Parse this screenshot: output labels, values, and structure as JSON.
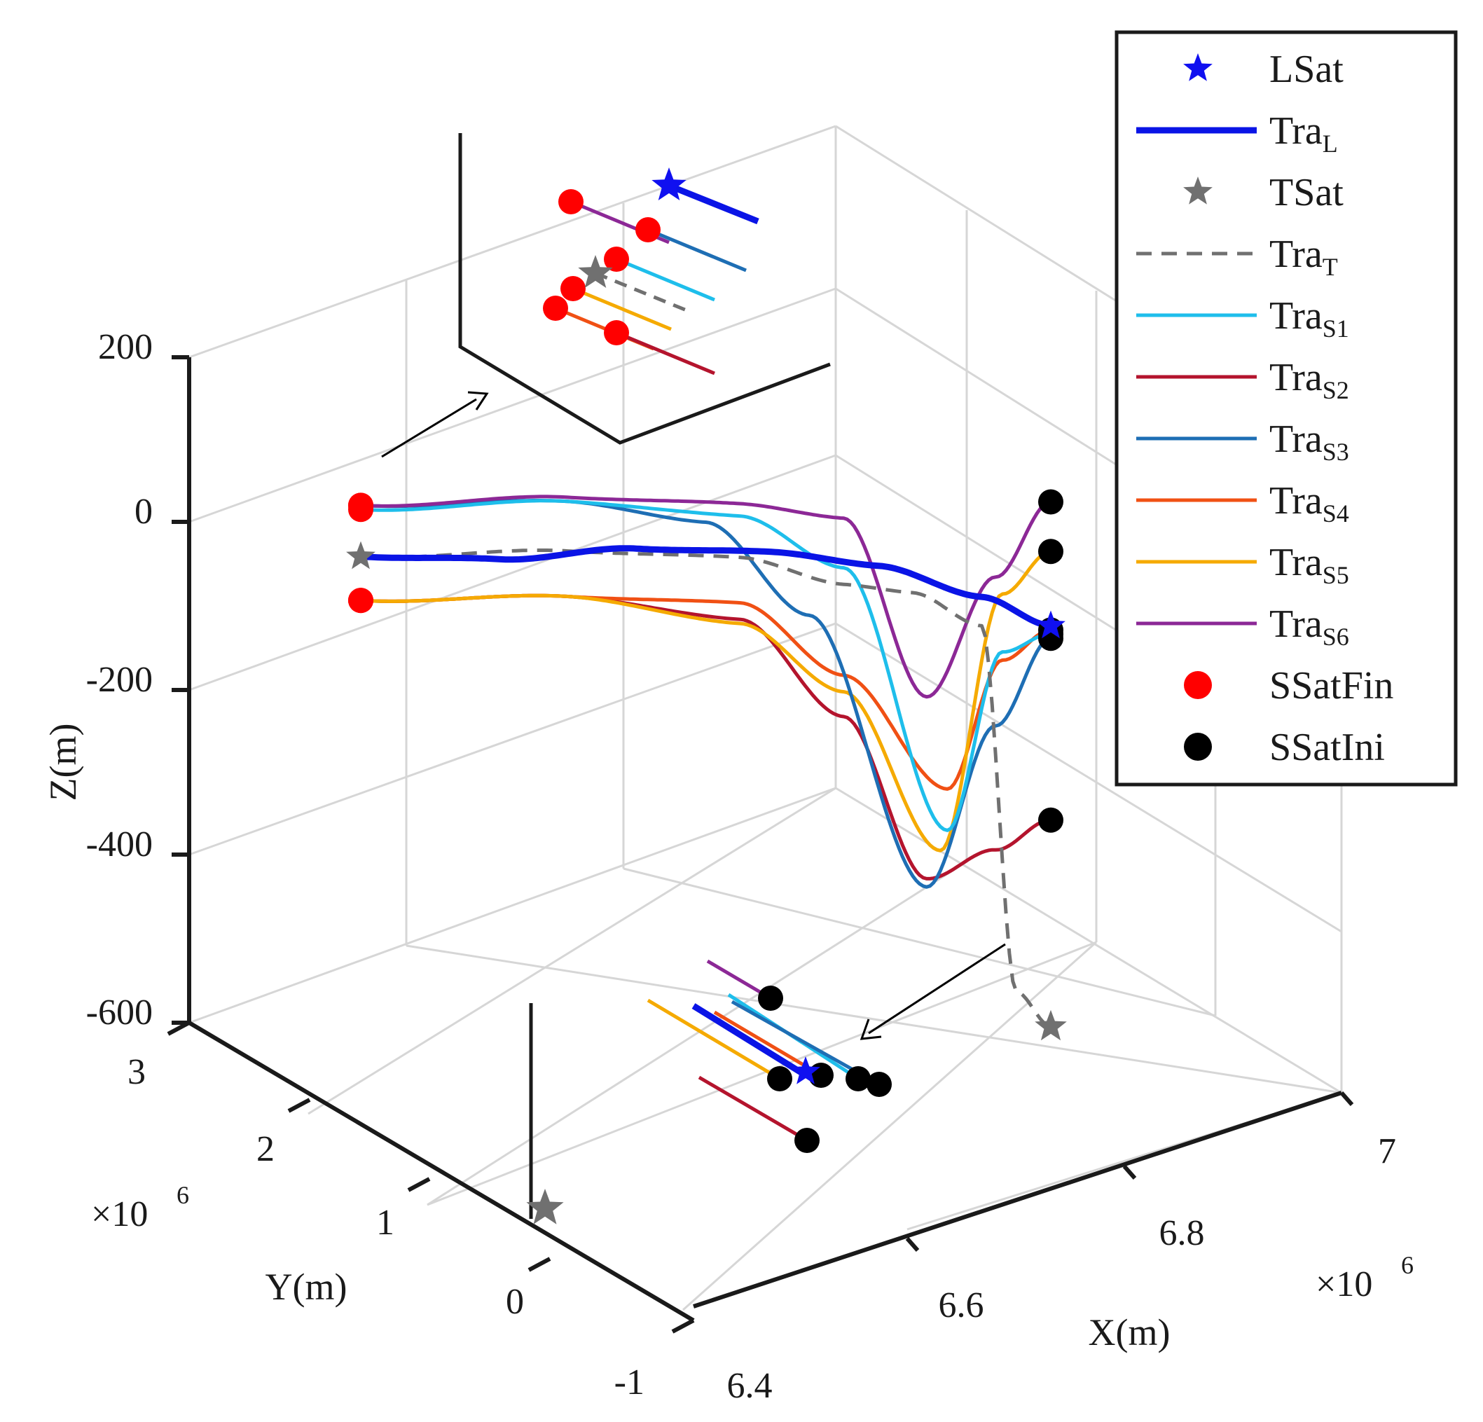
{
  "chart_data": {
    "type": "line3d",
    "title": "",
    "xlabel": "X(m)",
    "ylabel": "Y(m)",
    "zlabel": "Z(m)",
    "x_ticks": [
      "6.4",
      "6.6",
      "6.8",
      "7"
    ],
    "y_ticks": [
      "-1",
      "0",
      "1",
      "2",
      "3"
    ],
    "z_ticks": [
      "-600",
      "-400",
      "-200",
      "0",
      "200"
    ],
    "x_multiplier": "×10",
    "x_multiplier_exp": "6",
    "y_multiplier": "×10",
    "y_multiplier_exp": "6",
    "xlim": [
      6.4,
      7.0
    ],
    "ylim": [
      -1,
      3
    ],
    "zlim": [
      -600,
      200
    ],
    "grid": true,
    "legend_position": "top-right",
    "series": [
      {
        "name": "LSat",
        "base": "LSat",
        "sub": "",
        "style": "star",
        "color": "#1010f0"
      },
      {
        "name": "TraL",
        "base": "Tra",
        "sub": "L",
        "style": "line-thick",
        "color": "#0a14e6",
        "z_profile": [
          [
            0,
            -42
          ],
          [
            0.2,
            -35
          ],
          [
            0.4,
            -12
          ],
          [
            0.6,
            -6
          ],
          [
            0.75,
            -15
          ],
          [
            0.9,
            -45
          ],
          [
            1,
            -75
          ]
        ]
      },
      {
        "name": "TSat",
        "base": "TSat",
        "sub": "",
        "style": "star",
        "color": "#707070"
      },
      {
        "name": "TraT",
        "base": "Tra",
        "sub": "T",
        "style": "dashed",
        "color": "#707070",
        "z_profile": [
          [
            0,
            -42
          ],
          [
            0.3,
            -20
          ],
          [
            0.55,
            -15
          ],
          [
            0.7,
            -40
          ],
          [
            0.8,
            -45
          ],
          [
            0.9,
            -80
          ],
          [
            0.95,
            -520
          ],
          [
            1,
            -560
          ]
        ]
      },
      {
        "name": "TraS1",
        "base": "Tra",
        "sub": "S1",
        "style": "line",
        "color": "#1ebeeb",
        "z_profile": [
          [
            0,
            15
          ],
          [
            0.3,
            40
          ],
          [
            0.55,
            35
          ],
          [
            0.7,
            -20
          ],
          [
            0.85,
            -330
          ],
          [
            0.93,
            -110
          ],
          [
            1,
            -85
          ]
        ]
      },
      {
        "name": "TraS2",
        "base": "Tra",
        "sub": "S2",
        "style": "line",
        "color": "#b4142d",
        "z_profile": [
          [
            0,
            -95
          ],
          [
            0.3,
            -75
          ],
          [
            0.55,
            -90
          ],
          [
            0.7,
            -200
          ],
          [
            0.82,
            -390
          ],
          [
            0.92,
            -350
          ],
          [
            1,
            -310
          ]
        ]
      },
      {
        "name": "TraS3",
        "base": "Tra",
        "sub": "S3",
        "style": "line",
        "color": "#1e6eb4",
        "z_profile": [
          [
            0,
            20
          ],
          [
            0.3,
            40
          ],
          [
            0.5,
            25
          ],
          [
            0.65,
            -80
          ],
          [
            0.82,
            -400
          ],
          [
            0.92,
            -200
          ],
          [
            1,
            -90
          ]
        ]
      },
      {
        "name": "TraS4",
        "base": "Tra",
        "sub": "S4",
        "style": "line",
        "color": "#f05014",
        "z_profile": [
          [
            0,
            -95
          ],
          [
            0.3,
            -75
          ],
          [
            0.55,
            -70
          ],
          [
            0.7,
            -150
          ],
          [
            0.85,
            -280
          ],
          [
            0.93,
            -120
          ],
          [
            1,
            -80
          ]
        ]
      },
      {
        "name": "TraS5",
        "base": "Tra",
        "sub": "S5",
        "style": "line",
        "color": "#f5aa00",
        "z_profile": [
          [
            0,
            -95
          ],
          [
            0.3,
            -75
          ],
          [
            0.55,
            -95
          ],
          [
            0.7,
            -170
          ],
          [
            0.84,
            -355
          ],
          [
            0.93,
            -40
          ],
          [
            1,
            15
          ]
        ]
      },
      {
        "name": "TraS6",
        "base": "Tra",
        "sub": "S6",
        "style": "line",
        "color": "#8c2896",
        "z_profile": [
          [
            0,
            20
          ],
          [
            0.3,
            45
          ],
          [
            0.55,
            50
          ],
          [
            0.7,
            40
          ],
          [
            0.82,
            -170
          ],
          [
            0.92,
            -20
          ],
          [
            1,
            75
          ]
        ]
      },
      {
        "name": "SSatFin",
        "base": "SSatFin",
        "sub": "",
        "style": "marker",
        "color": "#ff0000"
      },
      {
        "name": "SSatIni",
        "base": "SSatIni",
        "sub": "",
        "style": "marker",
        "color": "#000000"
      }
    ],
    "annotations": [
      "inset: zoom at final positions (upper-left)",
      "inset: zoom at initial positions (bottom)"
    ]
  }
}
